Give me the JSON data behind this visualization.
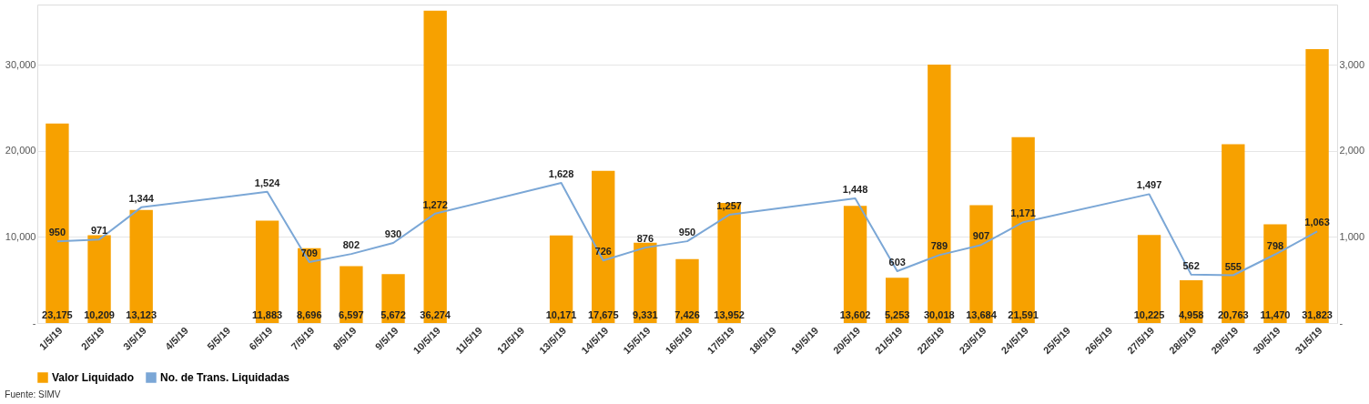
{
  "chart_data": {
    "type": "bar",
    "categories": [
      "1/5/19",
      "2/5/19",
      "3/5/19",
      "4/5/19",
      "5/5/19",
      "6/5/19",
      "7/5/19",
      "8/5/19",
      "9/5/19",
      "10/5/19",
      "11/5/19",
      "12/5/19",
      "13/5/19",
      "14/5/19",
      "15/5/19",
      "16/5/19",
      "17/5/19",
      "18/5/19",
      "19/5/19",
      "20/5/19",
      "21/5/19",
      "22/5/19",
      "23/5/19",
      "24/5/19",
      "25/5/19",
      "26/5/19",
      "27/5/19",
      "28/5/19",
      "29/5/19",
      "30/5/19",
      "31/5/19"
    ],
    "series": [
      {
        "name": "Valor Liquidado",
        "color": "#f7a100",
        "values": [
          23175,
          10209,
          13123,
          null,
          null,
          11883,
          8696,
          6597,
          5672,
          36274,
          null,
          null,
          10171,
          17675,
          9331,
          7426,
          13952,
          null,
          null,
          13602,
          5253,
          30018,
          13684,
          21591,
          null,
          null,
          10225,
          4958,
          20763,
          11470,
          31823
        ],
        "value_labels": [
          "23,175",
          "10,209",
          "13,123",
          null,
          null,
          "11,883",
          "8,696",
          "6,597",
          "5,672",
          "36,274",
          null,
          null,
          "10,171",
          "17,675",
          "9,331",
          "7,426",
          "13,952",
          null,
          null,
          "13,602",
          "5,253",
          "30,018",
          "13,684",
          "21,591",
          null,
          null,
          "10,225",
          "4,958",
          "20,763",
          "11,470",
          "31,823"
        ]
      },
      {
        "name": "No. de Trans. Liquidadas",
        "type": "line",
        "axis": "y2",
        "color": "#7ba7d6",
        "values": [
          950,
          971,
          1344,
          null,
          null,
          1524,
          709,
          802,
          930,
          1272,
          null,
          null,
          1628,
          726,
          876,
          950,
          1257,
          null,
          null,
          1448,
          603,
          789,
          907,
          1171,
          null,
          null,
          1497,
          562,
          555,
          798,
          1063
        ],
        "value_labels": [
          "950",
          "971",
          "1,344",
          null,
          null,
          "1,524",
          "709",
          "802",
          "930",
          "1,272",
          null,
          null,
          "1,628",
          "726",
          "876",
          "950",
          "1,257",
          null,
          null,
          "1,448",
          "603",
          "789",
          "907",
          "1,171",
          null,
          null,
          "1,497",
          "562",
          "555",
          "798",
          "1,063"
        ]
      }
    ],
    "ylim": [
      0,
      37000
    ],
    "yticks": [
      {
        "value": 0,
        "label": "-"
      },
      {
        "value": 10000,
        "label": "10,000"
      },
      {
        "value": 20000,
        "label": "20,000"
      },
      {
        "value": 30000,
        "label": "30,000"
      }
    ],
    "y2lim": [
      0,
      3700
    ],
    "y2ticks": [
      {
        "value": 0,
        "label": "-"
      },
      {
        "value": 1000,
        "label": "1,000"
      },
      {
        "value": 2000,
        "label": "2,000"
      },
      {
        "value": 3000,
        "label": "3,000"
      }
    ],
    "grid": "y",
    "legend": "bottom",
    "annotations": [
      "Fuente: SIMV"
    ]
  }
}
